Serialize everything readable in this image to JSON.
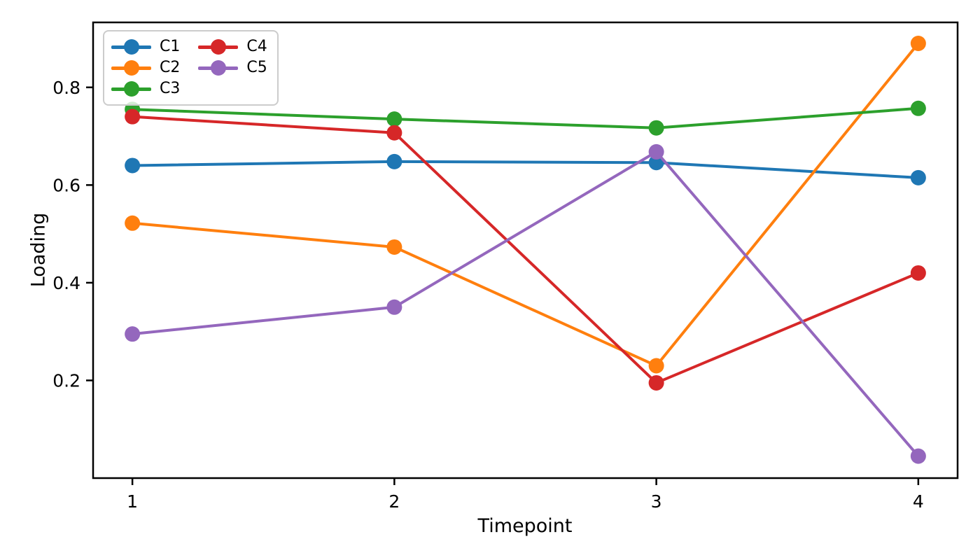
{
  "chart_data": {
    "type": "line",
    "title": "",
    "xlabel": "Timepoint",
    "ylabel": "Loading",
    "x": [
      1,
      2,
      3,
      4
    ],
    "xticks": [
      1,
      2,
      3,
      4
    ],
    "yticks": [
      0.2,
      0.4,
      0.6,
      0.8
    ],
    "xlim": [
      0.85,
      4.15
    ],
    "ylim": [
      0.0,
      0.933
    ],
    "grid": false,
    "legend_position": "upper left",
    "legend_columns": 2,
    "marker": "circle",
    "axis_color": "#000000",
    "series": [
      {
        "name": "C1",
        "color": "#1f77b4",
        "values": [
          0.64,
          0.648,
          0.646,
          0.615
        ]
      },
      {
        "name": "C2",
        "color": "#ff7f0e",
        "values": [
          0.522,
          0.473,
          0.23,
          0.89
        ]
      },
      {
        "name": "C3",
        "color": "#2ca02c",
        "values": [
          0.755,
          0.735,
          0.717,
          0.757
        ]
      },
      {
        "name": "C4",
        "color": "#d62728",
        "values": [
          0.74,
          0.707,
          0.195,
          0.42
        ]
      },
      {
        "name": "C5",
        "color": "#9467bd",
        "values": [
          0.295,
          0.35,
          0.668,
          0.045
        ]
      }
    ]
  }
}
